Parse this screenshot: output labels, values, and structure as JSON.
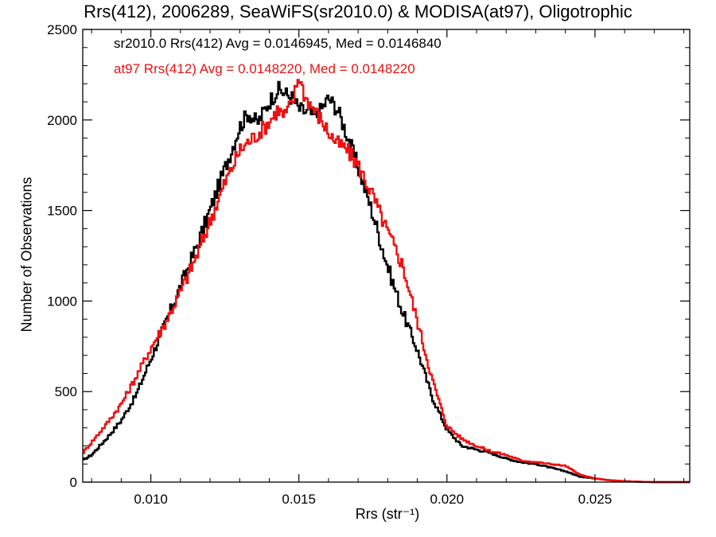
{
  "chart_data": {
    "type": "line",
    "title": "Rrs(412), 2006289, SeaWiFS(sr2010.0) & MODISA(at97), Oligotrophic",
    "xlabel": "Rrs (str⁻¹)",
    "ylabel": "Number of Observations",
    "xlim": [
      0.0077,
      0.0282
    ],
    "ylim": [
      0,
      2500
    ],
    "x_ticks": [
      0.01,
      0.015,
      0.02,
      0.025
    ],
    "x_tick_labels": [
      "0.010",
      "0.015",
      "0.020",
      "0.025"
    ],
    "y_ticks": [
      0,
      500,
      1000,
      1500,
      2000,
      2500
    ],
    "y_tick_labels": [
      "0",
      "500",
      "1000",
      "1500",
      "2000",
      "2500"
    ],
    "grid": false,
    "legend_position": "top-left",
    "annotations": [
      {
        "text": "sr2010.0 Rrs(412) Avg = 0.0146945, Med = 0.0146840",
        "color": "#000000"
      },
      {
        "text": "at97 Rrs(412) Avg = 0.0148220, Med = 0.0148220",
        "color": "#ee1111"
      }
    ],
    "series": [
      {
        "color": "#000000",
        "x": [
          0.0077,
          0.008,
          0.0085,
          0.009,
          0.0095,
          0.01,
          0.0105,
          0.011,
          0.0115,
          0.012,
          0.0125,
          0.013,
          0.0133,
          0.0136,
          0.014,
          0.0143,
          0.0145,
          0.0148,
          0.015,
          0.0153,
          0.0156,
          0.016,
          0.0163,
          0.0166,
          0.017,
          0.0175,
          0.018,
          0.0185,
          0.019,
          0.0195,
          0.02,
          0.0205,
          0.021,
          0.0215,
          0.022,
          0.0225,
          0.023,
          0.0235,
          0.024,
          0.0245,
          0.025,
          0.0255,
          0.026,
          0.0265,
          0.027,
          0.0275,
          0.028
        ],
        "y": [
          120,
          150,
          240,
          340,
          480,
          680,
          880,
          1080,
          1280,
          1500,
          1730,
          1960,
          2040,
          1980,
          2100,
          2170,
          2150,
          2120,
          2060,
          2040,
          2020,
          2120,
          2060,
          1930,
          1740,
          1480,
          1190,
          940,
          730,
          470,
          290,
          200,
          180,
          160,
          130,
          110,
          100,
          80,
          60,
          30,
          20,
          10,
          5,
          2,
          0,
          0,
          0
        ]
      },
      {
        "color": "#ee1111",
        "x": [
          0.0077,
          0.008,
          0.0085,
          0.009,
          0.0095,
          0.01,
          0.0105,
          0.011,
          0.0115,
          0.012,
          0.0125,
          0.013,
          0.0133,
          0.0136,
          0.014,
          0.0143,
          0.0145,
          0.0148,
          0.015,
          0.0152,
          0.0155,
          0.0158,
          0.016,
          0.0163,
          0.0166,
          0.017,
          0.0175,
          0.018,
          0.0185,
          0.019,
          0.0195,
          0.02,
          0.0205,
          0.021,
          0.0215,
          0.022,
          0.0225,
          0.023,
          0.0235,
          0.024,
          0.0245,
          0.025,
          0.0255,
          0.026,
          0.0265,
          0.027,
          0.0275,
          0.028
        ],
        "y": [
          160,
          220,
          320,
          430,
          580,
          740,
          880,
          1050,
          1230,
          1440,
          1650,
          1830,
          1880,
          1920,
          1990,
          2060,
          2020,
          2100,
          2250,
          2130,
          2060,
          1990,
          1930,
          1870,
          1840,
          1750,
          1580,
          1380,
          1200,
          890,
          570,
          310,
          240,
          200,
          170,
          150,
          120,
          110,
          100,
          90,
          40,
          20,
          10,
          5,
          2,
          0,
          0,
          0
        ]
      }
    ]
  }
}
